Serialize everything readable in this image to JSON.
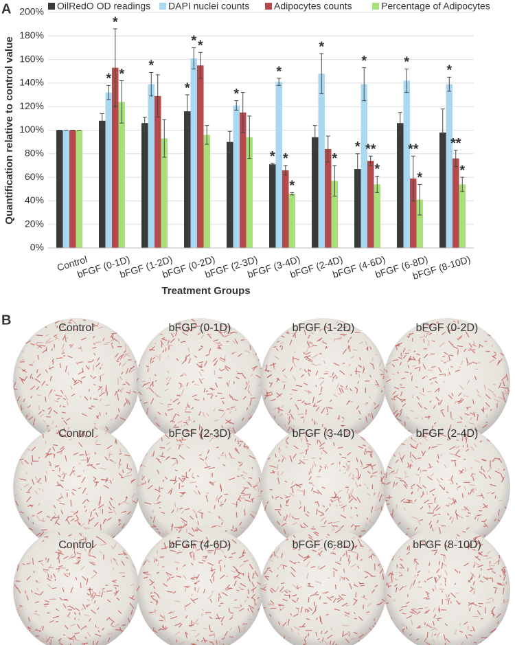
{
  "chart_data": {
    "type": "bar",
    "panel_label": "A",
    "y_label": "Quantification relative to control value",
    "x_label": "Treatment Groups",
    "categories": [
      "Control",
      "bFGF (0-1D)",
      "bFGF (1-2D)",
      "bFGF (0-2D)",
      "bFGF (2-3D)",
      "bFGF (3-4D)",
      "bFGF (2-4D)",
      "bFGF (4-6D)",
      "bFGF (6-8D)",
      "bFGF (8-10D)"
    ],
    "series": [
      {
        "name": "OilRedO OD readings",
        "color": "#3a3a3a",
        "values": [
          100,
          108,
          106,
          116,
          90,
          71,
          94,
          67,
          106,
          98
        ],
        "errors": [
          0,
          6,
          5,
          14,
          9,
          1,
          10,
          13,
          9,
          20
        ],
        "stars": [
          null,
          null,
          null,
          "*",
          null,
          "*",
          null,
          "*",
          null,
          null
        ]
      },
      {
        "name": "DAPI nuclei counts",
        "color": "#a9d9f2",
        "values": [
          100,
          132,
          139,
          161,
          121,
          141,
          148,
          139,
          142,
          139
        ],
        "errors": [
          0,
          6,
          10,
          9,
          4,
          3,
          17,
          14,
          10,
          6
        ],
        "stars": [
          null,
          "*",
          "*",
          "*",
          "*",
          "*",
          "*",
          "*",
          "*",
          "*"
        ]
      },
      {
        "name": "Adipocytes counts",
        "color": "#b54a4a",
        "values": [
          100,
          153,
          129,
          155,
          115,
          66,
          84,
          74,
          59,
          76
        ],
        "errors": [
          0,
          33,
          18,
          11,
          17,
          4,
          11,
          4,
          19,
          7
        ],
        "stars": [
          null,
          "*",
          null,
          "*",
          null,
          "*",
          null,
          "**",
          "**",
          "**"
        ]
      },
      {
        "name": "Percentage of Adipocytes",
        "color": "#a8e07c",
        "values": [
          100,
          124,
          93,
          96,
          94,
          46,
          57,
          54,
          41,
          54
        ],
        "errors": [
          0,
          18,
          16,
          8,
          18,
          1,
          13,
          7,
          13,
          6
        ],
        "stars": [
          null,
          "*",
          null,
          null,
          null,
          "*",
          "*",
          "*",
          "*",
          "*"
        ]
      }
    ],
    "ylim": [
      0,
      200
    ],
    "yticks": [
      {
        "value": 0,
        "label": "0%"
      },
      {
        "value": 20,
        "label": "20%"
      },
      {
        "value": 40,
        "label": "40%"
      },
      {
        "value": 60,
        "label": "60%"
      },
      {
        "value": 80,
        "label": "80%"
      },
      {
        "value": 100,
        "label": "100%"
      },
      {
        "value": 120,
        "label": "120%"
      },
      {
        "value": 140,
        "label": "140%"
      },
      {
        "value": 160,
        "label": "160%"
      },
      {
        "value": 180,
        "label": "180%"
      },
      {
        "value": 200,
        "label": "200%"
      }
    ],
    "grid": true
  },
  "micrographs": {
    "panel_label": "B",
    "labels": [
      "Control",
      "bFGF (0-1D)",
      "bFGF (1-2D)",
      "bFGF (0-2D)",
      "Control",
      "bFGF (2-3D)",
      "bFGF (3-4D)",
      "bFGF (2-4D)",
      "Control",
      "bFGF (4-6D)",
      "bFGF (6-8D)",
      "bFGF (8-10D)"
    ]
  }
}
